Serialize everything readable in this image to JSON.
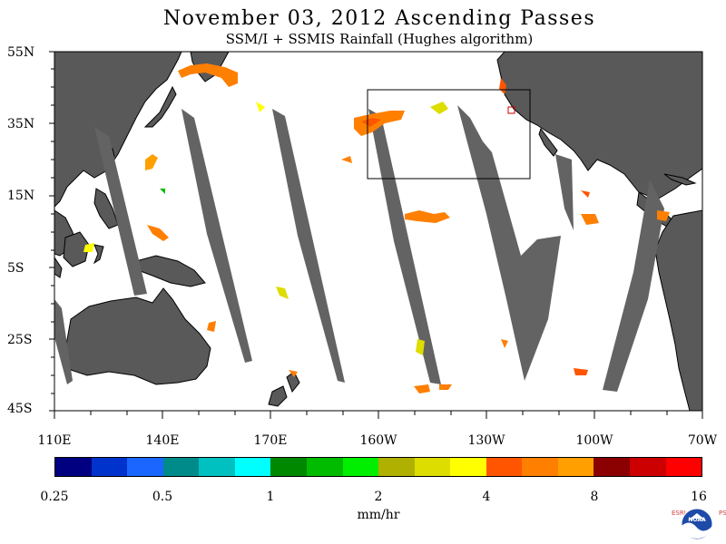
{
  "title": "November 03, 2012  Ascending Passes",
  "subtitle": "SSM/I + SSMIS Rainfall (Hughes algorithm)",
  "y_axis_labels": [
    "55N",
    "35N",
    "15N",
    "5S",
    "25S",
    "45S"
  ],
  "x_axis_labels": [
    "110E",
    "140E",
    "170E",
    "160W",
    "130W",
    "100W",
    "70W"
  ],
  "colorbar": {
    "colors": [
      "#000080",
      "#0033cc",
      "#1a66ff",
      "#008b8b",
      "#00c0c0",
      "#00ffff",
      "#008800",
      "#00bb00",
      "#00ee00",
      "#b0b000",
      "#dddd00",
      "#ffff00",
      "#ff5500",
      "#ff7f00",
      "#ffa000",
      "#8b0000",
      "#cc0000",
      "#ff0000"
    ],
    "tick_labels": [
      "0.25",
      "0.5",
      "1",
      "2",
      "4",
      "8",
      "16"
    ],
    "units": "mm/hr"
  },
  "logo": {
    "name": "NOAA",
    "left_letters": "ESRL",
    "right_letters": "PSD"
  },
  "colors": {
    "land": "#595959",
    "data_gap": "#636363",
    "background": "#ffffff"
  }
}
